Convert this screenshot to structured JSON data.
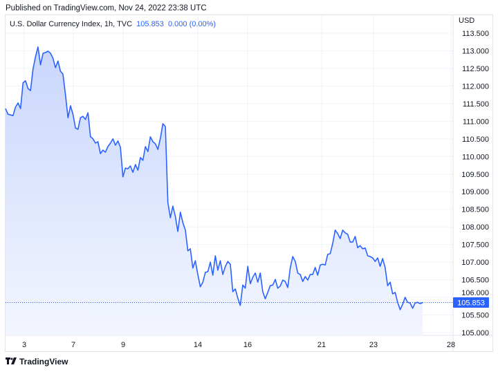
{
  "header": {
    "published": "Published on TradingView.com, Nov 24, 2022 23:38 UTC"
  },
  "legend": {
    "symbol": "U.S. Dollar Currency Index, 1h, TVC",
    "last": "105.853",
    "change": "0.000 (0.00%)"
  },
  "footer": {
    "logo_text": "TradingView"
  },
  "colors": {
    "line": "#2962ff",
    "fill_top": "#c9d6fc",
    "fill_bottom": "#f3f6ff",
    "grid": "#f0f3fa",
    "price_label": "#2962ff"
  },
  "chart_data": {
    "type": "area",
    "currency": "USD",
    "ylim": [
      104.9,
      113.9
    ],
    "y_ticks": [
      "113.500",
      "113.000",
      "112.500",
      "112.000",
      "111.500",
      "111.000",
      "110.500",
      "110.000",
      "109.500",
      "109.000",
      "108.500",
      "108.000",
      "107.500",
      "107.000",
      "106.500",
      "106.000",
      "105.500",
      "105.000"
    ],
    "x_ticks": [
      "3",
      "7",
      "9",
      "14",
      "16",
      "21",
      "23",
      "28"
    ],
    "last_price": 105.853,
    "last_price_label": "105.853",
    "grid": true,
    "series": [
      {
        "values": [
          111.36,
          111.2,
          111.18,
          111.16,
          111.4,
          111.52,
          111.36,
          112.09,
          112.15,
          111.93,
          111.87,
          112.48,
          112.83,
          113.11,
          112.6,
          112.93,
          112.95,
          112.99,
          112.93,
          112.79,
          112.52,
          112.71,
          112.42,
          112.34,
          111.75,
          111.1,
          111.44,
          111.2,
          110.81,
          110.77,
          111.1,
          111.14,
          111.05,
          111.24,
          110.56,
          110.5,
          110.38,
          110.42,
          110.08,
          110.18,
          110.12,
          110.28,
          110.38,
          110.5,
          110.32,
          110.44,
          110.26,
          109.42,
          109.67,
          109.65,
          109.73,
          109.55,
          109.77,
          109.61,
          109.97,
          109.89,
          110.28,
          110.14,
          110.56,
          110.42,
          110.36,
          110.2,
          110.52,
          110.93,
          110.85,
          108.69,
          108.26,
          108.59,
          108.3,
          107.87,
          108.42,
          108.12,
          107.91,
          107.32,
          107.38,
          106.83,
          107.04,
          106.65,
          106.3,
          106.43,
          106.71,
          106.73,
          107.0,
          106.63,
          107.18,
          106.77,
          107.04,
          106.65,
          106.87,
          107.02,
          106.94,
          106.16,
          106.24,
          105.98,
          105.77,
          106.35,
          106.26,
          106.88,
          106.39,
          106.57,
          106.69,
          106.43,
          106.69,
          106.16,
          105.96,
          106.14,
          106.33,
          106.35,
          106.51,
          106.26,
          106.32,
          106.49,
          106.45,
          106.28,
          106.83,
          107.16,
          107.02,
          106.69,
          106.65,
          106.45,
          106.59,
          106.49,
          106.65,
          106.65,
          106.85,
          106.63,
          106.92,
          106.94,
          106.92,
          107.22,
          107.24,
          107.53,
          107.91,
          107.81,
          107.67,
          107.91,
          107.83,
          107.79,
          107.57,
          107.57,
          107.73,
          107.41,
          107.47,
          107.38,
          107.4,
          107.18,
          107.16,
          107.12,
          107.02,
          107.12,
          106.88,
          107.1,
          106.85,
          106.33,
          106.43,
          106.1,
          106.14,
          105.86,
          105.65,
          105.8,
          106.0,
          105.86,
          105.84,
          105.69,
          105.84,
          105.86,
          105.82,
          105.853
        ]
      }
    ]
  }
}
